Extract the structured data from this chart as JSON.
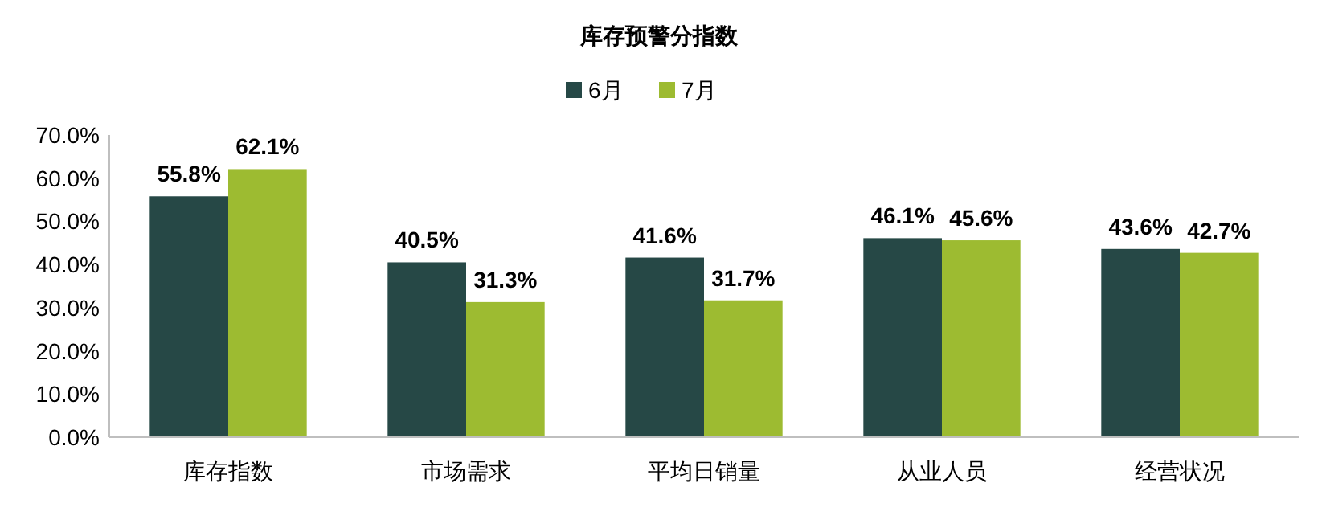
{
  "chart_data": {
    "type": "bar",
    "title": "库存预警分指数",
    "categories": [
      "库存指数",
      "市场需求",
      "平均日销量",
      "从业人员",
      "经营状况"
    ],
    "series": [
      {
        "name": "6月",
        "color": "#264846",
        "values": [
          55.8,
          40.5,
          41.6,
          46.1,
          43.6
        ],
        "value_labels": [
          "55.8%",
          "40.5%",
          "41.6%",
          "46.1%",
          "43.6%"
        ]
      },
      {
        "name": "7月",
        "color": "#9dbb31",
        "values": [
          62.1,
          31.3,
          31.7,
          45.6,
          42.7
        ],
        "value_labels": [
          "62.1%",
          "31.3%",
          "31.7%",
          "45.6%",
          "42.7%"
        ]
      }
    ],
    "ylim": [
      0,
      70
    ],
    "yticks": [
      {
        "value": 0,
        "label": "0.0%"
      },
      {
        "value": 10,
        "label": "10.0%"
      },
      {
        "value": 20,
        "label": "20.0%"
      },
      {
        "value": 30,
        "label": "30.0%"
      },
      {
        "value": 40,
        "label": "40.0%"
      },
      {
        "value": 50,
        "label": "50.0%"
      },
      {
        "value": 60,
        "label": "60.0%"
      },
      {
        "value": 70,
        "label": "70.0%"
      }
    ],
    "grid": false,
    "legend": "top"
  }
}
